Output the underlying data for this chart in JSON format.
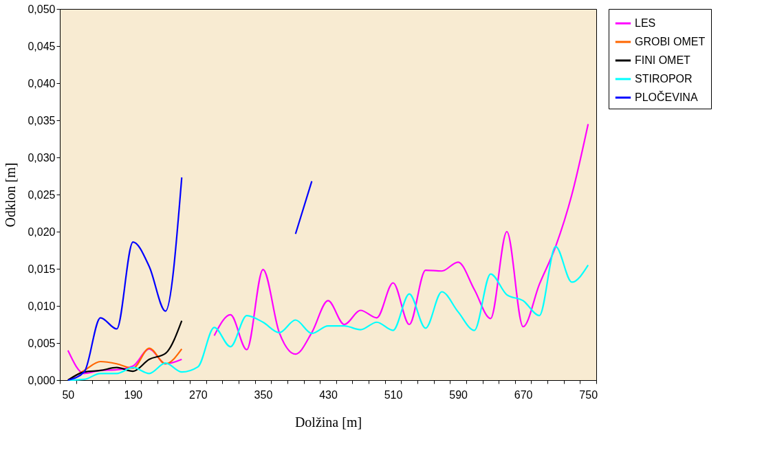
{
  "chart_data": {
    "type": "line",
    "xlabel": "Dolžina [m]",
    "ylabel": "Odklon [m]",
    "categories": [
      "50",
      null,
      null,
      null,
      "190",
      null,
      null,
      null,
      "270",
      null,
      null,
      null,
      "350",
      null,
      null,
      null,
      "430",
      null,
      null,
      null,
      "510",
      null,
      null,
      null,
      "590",
      null,
      null,
      null,
      "670",
      null,
      null,
      null,
      "750"
    ],
    "ylim": [
      0,
      0.05
    ],
    "yticks": [
      {
        "value": 0,
        "label": "0,000"
      },
      {
        "value": 0.005,
        "label": "0,005"
      },
      {
        "value": 0.01,
        "label": "0,010"
      },
      {
        "value": 0.015,
        "label": "0,015"
      },
      {
        "value": 0.02,
        "label": "0,020"
      },
      {
        "value": 0.025,
        "label": "0,025"
      },
      {
        "value": 0.03,
        "label": "0,030"
      },
      {
        "value": 0.035,
        "label": "0,035"
      },
      {
        "value": 0.04,
        "label": "0,040"
      },
      {
        "value": 0.045,
        "label": "0,045"
      },
      {
        "value": 0.05,
        "label": "0,050"
      }
    ],
    "grid": false,
    "legend": "right",
    "marker": "none",
    "line_style": "solid",
    "series": [
      {
        "name": "LES",
        "color": "#ff00ff",
        "values": [
          0.004,
          0.0009,
          0.0013,
          0.0014,
          0.0019,
          0.0042,
          0.0022,
          0.0028,
          null,
          0.006,
          0.0088,
          0.0041,
          0.0149,
          0.0064,
          0.0035,
          0.0064,
          0.0107,
          0.0075,
          0.0094,
          0.0084,
          0.0131,
          0.0075,
          0.0148,
          0.0147,
          0.0159,
          0.0122,
          0.0083,
          0.02,
          0.0072,
          0.0129,
          0.018,
          0.025,
          0.0345
        ]
      },
      {
        "name": "GROBI OMET",
        "color": "#ff6600",
        "values": [
          0.0,
          0.0013,
          0.0025,
          0.0022,
          0.0016,
          0.0043,
          0.0022,
          0.0042,
          null,
          null,
          null,
          null,
          null,
          null,
          null,
          null,
          null,
          null,
          null,
          null,
          null,
          null,
          null,
          null,
          null,
          null,
          null,
          null,
          null,
          null,
          null,
          null,
          null
        ]
      },
      {
        "name": "FINI OMET",
        "color": "#000000",
        "values": [
          0.0,
          0.0011,
          0.0013,
          0.0017,
          0.0012,
          0.0028,
          0.0036,
          0.008,
          null,
          null,
          null,
          null,
          null,
          null,
          null,
          null,
          null,
          null,
          null,
          null,
          null,
          null,
          null,
          null,
          null,
          null,
          null,
          null,
          null,
          null,
          null,
          null,
          null
        ]
      },
      {
        "name": "STIROPOR",
        "color": "#00ffff",
        "values": [
          0.0,
          0.0001,
          0.0009,
          0.0009,
          0.0017,
          0.0009,
          0.0023,
          0.0011,
          0.0018,
          0.0071,
          0.0045,
          0.0087,
          0.0078,
          0.0064,
          0.0081,
          0.0063,
          0.0073,
          0.0073,
          0.0068,
          0.0078,
          0.0067,
          0.0116,
          0.007,
          0.0119,
          0.0092,
          0.0067,
          0.0143,
          0.0115,
          0.0107,
          0.0087,
          0.018,
          0.0132,
          0.0155
        ]
      },
      {
        "name": "PLOČEVINA",
        "color": "#0000ff",
        "values": [
          0.0,
          0.0011,
          0.0084,
          0.0069,
          0.0186,
          0.0153,
          0.0093,
          0.0273,
          null,
          null,
          null,
          null,
          null,
          null,
          0.0197,
          0.0268,
          null,
          null,
          null,
          null,
          null,
          null,
          null,
          null,
          null,
          null,
          null,
          null,
          null,
          null,
          null,
          null,
          null
        ]
      }
    ]
  }
}
